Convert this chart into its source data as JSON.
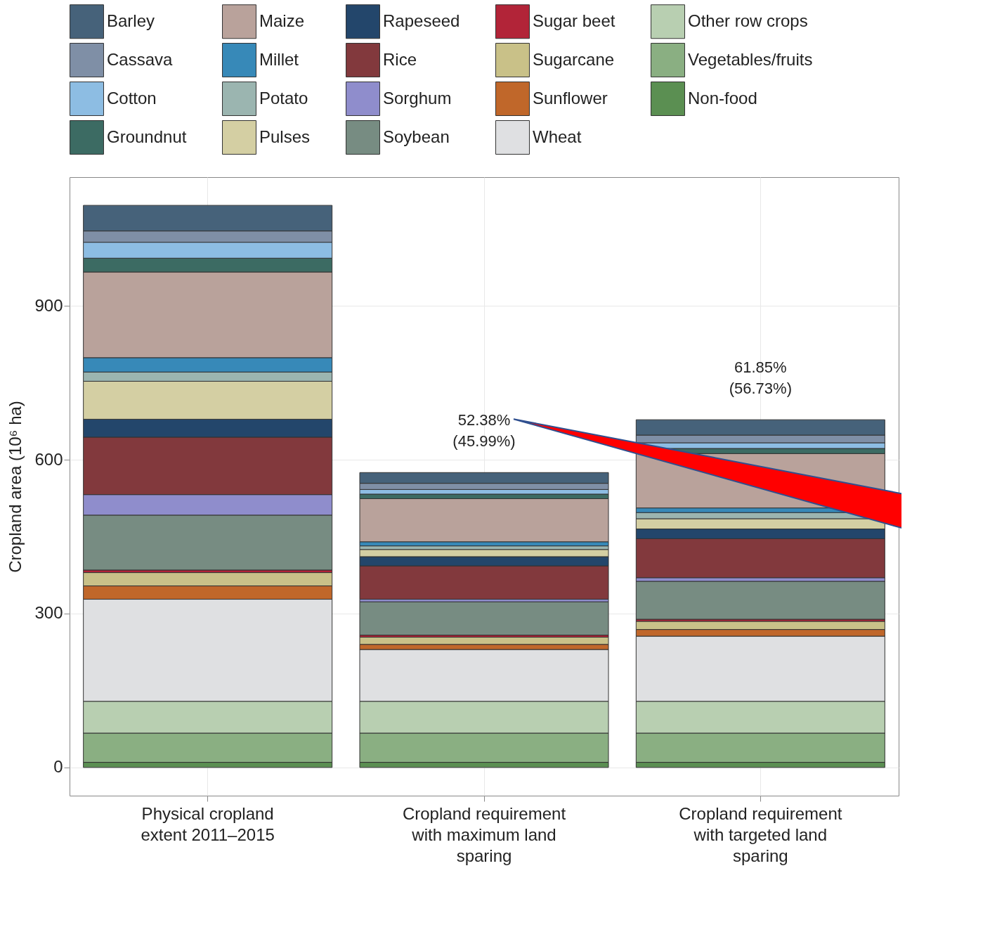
{
  "chart_data": {
    "type": "bar",
    "stacked": true,
    "categories": [
      "Physical cropland extent 2011–2015",
      "Cropland requirement with maximum land sparing",
      "Cropland requirement with targeted land sparing"
    ],
    "ylabel": "Cropland area (10⁶ ha)",
    "ylim": [
      -55,
      1151
    ],
    "yticks": [
      0,
      300,
      600,
      900
    ],
    "grid": true,
    "legend": "top",
    "series": [
      {
        "name": "Non-food",
        "color": "#5b8f52",
        "values": [
          10,
          10,
          10
        ]
      },
      {
        "name": "Vegetables/fruits",
        "color": "#8aaf82",
        "values": [
          57,
          57,
          57
        ]
      },
      {
        "name": "Other row crops",
        "color": "#b8cfb1",
        "values": [
          62,
          62,
          62
        ]
      },
      {
        "name": "Wheat",
        "color": "#dfe0e2",
        "values": [
          199,
          101,
          127
        ]
      },
      {
        "name": "Sunflower",
        "color": "#c0672a",
        "values": [
          26,
          10,
          13
        ]
      },
      {
        "name": "Sugarcane",
        "color": "#c9c188",
        "values": [
          26,
          14,
          16
        ]
      },
      {
        "name": "Sugar beet",
        "color": "#b22438",
        "values": [
          5,
          4,
          4
        ]
      },
      {
        "name": "Soybean",
        "color": "#778c82",
        "values": [
          107,
          65,
          74
        ]
      },
      {
        "name": "Sorghum",
        "color": "#8f8dcc",
        "values": [
          40,
          5,
          7
        ]
      },
      {
        "name": "Rice",
        "color": "#82393d",
        "values": [
          112,
          65,
          76
        ]
      },
      {
        "name": "Rapeseed",
        "color": "#23466b",
        "values": [
          35,
          18,
          19
        ]
      },
      {
        "name": "Pulses",
        "color": "#d4cfa3",
        "values": [
          74,
          14,
          20
        ]
      },
      {
        "name": "Potato",
        "color": "#9bb5b0",
        "values": [
          18,
          7,
          12
        ]
      },
      {
        "name": "Millet",
        "color": "#3789b8",
        "values": [
          28,
          8,
          9
        ]
      },
      {
        "name": "Maize",
        "color": "#b9a29b",
        "values": [
          167,
          84,
          106
        ]
      },
      {
        "name": "Groundnut",
        "color": "#3c6b63",
        "values": [
          27,
          9,
          10
        ]
      },
      {
        "name": "Cotton",
        "color": "#8dbde3",
        "values": [
          31,
          9,
          11
        ]
      },
      {
        "name": "Cassava",
        "color": "#7f8fa6",
        "values": [
          22,
          12,
          15
        ]
      },
      {
        "name": "Barley",
        "color": "#46627a",
        "values": [
          50,
          21,
          30
        ]
      }
    ],
    "annotations": [
      "52.38% (45.99%)",
      "61.85% (56.73%)"
    ]
  }
}
